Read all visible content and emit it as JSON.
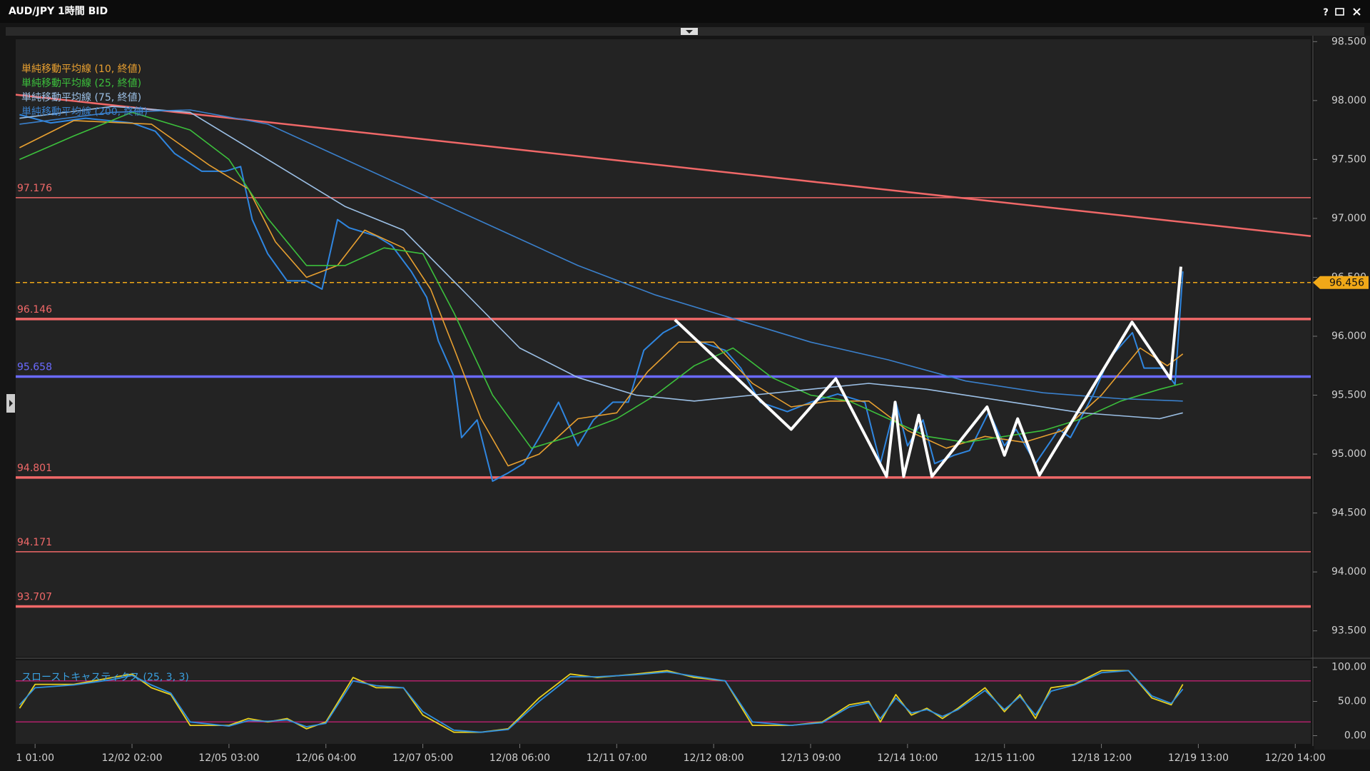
{
  "window": {
    "title": "AUD/JPY 1時間 BID",
    "help": "?"
  },
  "chart_data": [
    {
      "type": "line",
      "xlim": [
        -5,
        329
      ],
      "xticks": [
        {
          "value": 0,
          "label": "1 01:00"
        },
        {
          "value": 25,
          "label": "12/02 02:00"
        },
        {
          "value": 50,
          "label": "12/05 03:00"
        },
        {
          "value": 75,
          "label": "12/06 04:00"
        },
        {
          "value": 100,
          "label": "12/07 05:00"
        },
        {
          "value": 125,
          "label": "12/08 06:00"
        },
        {
          "value": 150,
          "label": "12/11 07:00"
        },
        {
          "value": 175,
          "label": "12/12 08:00"
        },
        {
          "value": 200,
          "label": "12/13 09:00"
        },
        {
          "value": 225,
          "label": "12/14 10:00"
        },
        {
          "value": 250,
          "label": "12/15 11:00"
        },
        {
          "value": 275,
          "label": "12/18 12:00"
        },
        {
          "value": 300,
          "label": "12/19 13:00"
        },
        {
          "value": 325,
          "label": "12/20 14:00"
        }
      ],
      "ylim": [
        93.28,
        98.52
      ],
      "yticks": [
        {
          "value": 98.5,
          "label": "98.500"
        },
        {
          "value": 98,
          "label": "98.000"
        },
        {
          "value": 97.5,
          "label": "97.500"
        },
        {
          "value": 97,
          "label": "97.000"
        },
        {
          "value": 96.5,
          "label": "96.500"
        },
        {
          "value": 96,
          "label": "96.000"
        },
        {
          "value": 95.5,
          "label": "95.500"
        },
        {
          "value": 95,
          "label": "95.000"
        },
        {
          "value": 94.5,
          "label": "94.500"
        },
        {
          "value": 94,
          "label": "94.000"
        },
        {
          "value": 93.5,
          "label": "93.500"
        }
      ],
      "price": {
        "color": "#2f86e0",
        "x": [
          -4,
          4,
          13,
          25,
          31,
          36,
          43,
          49,
          53,
          56,
          60,
          65,
          70,
          74,
          78,
          81,
          88,
          92,
          97,
          101,
          104,
          108,
          110,
          114,
          118,
          122,
          126,
          130,
          135,
          140,
          144,
          149,
          153,
          157,
          162,
          166,
          171,
          178,
          182,
          187,
          194,
          200,
          207,
          214,
          218,
          222,
          225,
          229,
          232,
          237,
          241,
          246,
          250,
          253,
          258,
          264,
          267,
          273,
          277,
          283,
          286,
          291,
          294,
          296
        ],
        "values": [
          97.88,
          97.81,
          97.85,
          97.81,
          97.74,
          97.55,
          97.4,
          97.4,
          97.44,
          96.99,
          96.7,
          96.47,
          96.47,
          96.4,
          96.99,
          96.92,
          96.85,
          96.77,
          96.55,
          96.33,
          95.96,
          95.66,
          95.14,
          95.29,
          94.77,
          94.84,
          94.92,
          95.14,
          95.44,
          95.07,
          95.29,
          95.44,
          95.44,
          95.88,
          96.03,
          96.1,
          95.96,
          95.88,
          95.73,
          95.44,
          95.36,
          95.44,
          95.51,
          95.44,
          94.92,
          95.44,
          95.07,
          95.29,
          94.92,
          94.99,
          95.03,
          95.36,
          95.07,
          95.21,
          94.92,
          95.21,
          95.14,
          95.51,
          95.81,
          96.03,
          95.73,
          95.73,
          95.59,
          96.55
        ]
      },
      "series": [
        {
          "name": "単純移動平均線 (10, 終値)",
          "color": "#e8a030",
          "x": [
            -4,
            10,
            30,
            45,
            55,
            62,
            70,
            78,
            85,
            95,
            102,
            108,
            115,
            122,
            130,
            140,
            150,
            158,
            166,
            175,
            185,
            195,
            205,
            215,
            225,
            235,
            245,
            255,
            265,
            275,
            285,
            292,
            296
          ],
          "values": [
            97.6,
            97.83,
            97.8,
            97.45,
            97.25,
            96.8,
            96.5,
            96.6,
            96.9,
            96.75,
            96.4,
            95.9,
            95.3,
            94.9,
            95.0,
            95.3,
            95.35,
            95.7,
            95.95,
            95.95,
            95.6,
            95.4,
            95.45,
            95.45,
            95.2,
            95.05,
            95.15,
            95.1,
            95.2,
            95.5,
            95.9,
            95.75,
            95.85
          ]
        },
        {
          "name": "単純移動平均線 (25, 終値)",
          "color": "#3cc03c",
          "x": [
            -4,
            10,
            25,
            40,
            50,
            60,
            70,
            80,
            90,
            100,
            108,
            118,
            128,
            138,
            150,
            160,
            170,
            180,
            190,
            200,
            210,
            220,
            230,
            240,
            250,
            260,
            270,
            280,
            290,
            296
          ],
          "values": [
            97.5,
            97.7,
            97.9,
            97.75,
            97.5,
            97.0,
            96.6,
            96.6,
            96.75,
            96.7,
            96.2,
            95.5,
            95.05,
            95.15,
            95.3,
            95.5,
            95.75,
            95.9,
            95.65,
            95.5,
            95.45,
            95.3,
            95.15,
            95.1,
            95.15,
            95.2,
            95.3,
            95.45,
            95.55,
            95.6
          ]
        },
        {
          "name": "単純移動平均線 (75, 終値)",
          "color": "#9cc0e6",
          "x": [
            -4,
            20,
            40,
            60,
            80,
            95,
            110,
            125,
            140,
            155,
            170,
            185,
            200,
            215,
            230,
            250,
            270,
            290,
            296
          ],
          "values": [
            97.85,
            97.95,
            97.9,
            97.5,
            97.1,
            96.9,
            96.4,
            95.9,
            95.65,
            95.5,
            95.45,
            95.5,
            95.55,
            95.6,
            95.55,
            95.45,
            95.35,
            95.3,
            95.35
          ]
        },
        {
          "name": "単純移動平均線 (200, 終値)",
          "color": "#3a80cc",
          "x": [
            -4,
            20,
            40,
            60,
            80,
            100,
            120,
            140,
            160,
            180,
            200,
            220,
            240,
            260,
            280,
            296
          ],
          "values": [
            97.8,
            97.9,
            97.92,
            97.8,
            97.5,
            97.2,
            96.9,
            96.6,
            96.35,
            96.15,
            95.95,
            95.8,
            95.62,
            95.52,
            95.47,
            95.45
          ]
        }
      ],
      "levels": [
        {
          "value": 97.176,
          "color": "#f06868",
          "width": 1.5
        },
        {
          "value": 96.146,
          "color": "#f06868",
          "width": 3.5
        },
        {
          "value": 95.658,
          "color": "#6a6aff",
          "width": 3.5
        },
        {
          "value": 94.801,
          "color": "#f06868",
          "width": 3.5
        },
        {
          "value": 94.171,
          "color": "#f06868",
          "width": 1.5
        },
        {
          "value": 93.707,
          "color": "#f06868",
          "width": 3.5
        }
      ],
      "trendline": {
        "color": "#f06868",
        "x": [
          -5,
          329
        ],
        "values": [
          98.05,
          96.85
        ]
      },
      "current": {
        "value": 96.456,
        "color": "#f0a818"
      },
      "pattern": {
        "color": "#ffffff",
        "x": [
          165,
          195,
          206.5,
          219.6,
          221.8,
          224,
          227.9,
          231.3,
          245.5,
          250,
          253.4,
          259,
          282.9,
          292.8,
          295.5
        ],
        "values": [
          96.14,
          95.21,
          95.64,
          94.81,
          95.44,
          94.81,
          95.33,
          94.81,
          95.4,
          94.99,
          95.3,
          94.82,
          96.12,
          95.64,
          96.59
        ]
      }
    },
    {
      "type": "line",
      "title": "スローストキャスティクス (25, 3, 3)",
      "xlim": [
        -5,
        329
      ],
      "ylim": [
        -12,
        110
      ],
      "yticks": [
        {
          "value": 100,
          "label": "100.00"
        },
        {
          "value": 50,
          "label": "50.00"
        },
        {
          "value": 0,
          "label": "0.00"
        }
      ],
      "bands": [
        80,
        20
      ],
      "x": [
        -4,
        0,
        10,
        20,
        25,
        30,
        35,
        40,
        50,
        55,
        60,
        65,
        70,
        75,
        82,
        88,
        95,
        100,
        108,
        115,
        122,
        130,
        138,
        145,
        155,
        163,
        170,
        178,
        185,
        195,
        203,
        210,
        215,
        218,
        222,
        226,
        230,
        234,
        238,
        245,
        250,
        254,
        258,
        262,
        268,
        275,
        282,
        288,
        293,
        296
      ],
      "series": [
        {
          "color": "#e8d020",
          "values": [
            40,
            75,
            75,
            85,
            90,
            70,
            60,
            15,
            15,
            25,
            20,
            25,
            10,
            20,
            85,
            70,
            70,
            30,
            5,
            5,
            10,
            55,
            90,
            85,
            90,
            95,
            85,
            80,
            15,
            15,
            20,
            45,
            50,
            20,
            60,
            30,
            40,
            25,
            40,
            70,
            35,
            60,
            25,
            70,
            75,
            95,
            95,
            55,
            45,
            75
          ]
        },
        {
          "color": "#2f90e0",
          "values": [
            45,
            70,
            74,
            82,
            88,
            74,
            62,
            20,
            14,
            22,
            21,
            23,
            13,
            18,
            80,
            73,
            70,
            35,
            8,
            5,
            9,
            50,
            86,
            86,
            89,
            93,
            87,
            80,
            20,
            15,
            19,
            42,
            48,
            25,
            55,
            33,
            38,
            28,
            38,
            66,
            38,
            57,
            30,
            65,
            74,
            92,
            95,
            58,
            47,
            68
          ]
        }
      ]
    }
  ]
}
